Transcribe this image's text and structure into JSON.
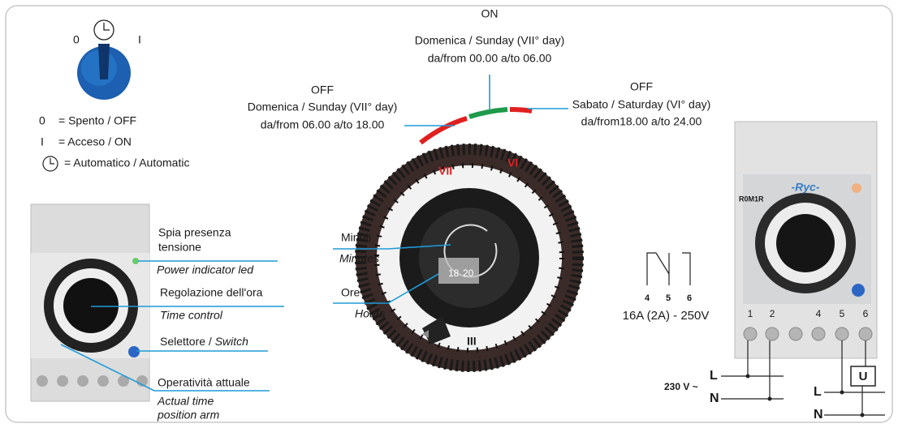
{
  "switch": {
    "off": "0",
    "on": "I"
  },
  "legend": [
    {
      "symbol": "0",
      "text": "= Spento / OFF"
    },
    {
      "symbol": "I",
      "text": "= Acceso  / ON"
    },
    {
      "text": "= Automatico / Automatic"
    }
  ],
  "callouts": {
    "on": {
      "state": "ON",
      "day": "Domenica / Sunday (VII° day)",
      "time": "da/from 00.00 a/to 06.00"
    },
    "off_sunday": {
      "state": "OFF",
      "day": "Domenica / Sunday (VII° day)",
      "time": "da/from 06.00 a/to 18.00"
    },
    "off_saturday": {
      "state": "OFF",
      "day": "Sabato / Saturday (VI° day)",
      "time": "da/from18.00 a/to 24.00"
    }
  },
  "device_labels": {
    "led": [
      "Spia presenza",
      "tensione",
      "Power indicator led"
    ],
    "time_control": [
      "Regolazione dell'ora",
      "Time control"
    ],
    "switch": [
      "Selettore / ",
      "Switch"
    ],
    "arm": [
      "Operatività attuale",
      "Actual time",
      "position arm"
    ]
  },
  "dial": {
    "minutes": [
      "Minuti",
      "Minutes"
    ],
    "hours": [
      "Ore",
      "Hours"
    ],
    "labels": [
      "VII",
      "VI",
      "III",
      "18",
      "20"
    ]
  },
  "relay": {
    "terminals": [
      "4",
      "5",
      "6"
    ],
    "rating": "16A (2A) - 250V"
  },
  "device": {
    "brand": "-Ryc-",
    "model": "R0M1R",
    "terminals": [
      "1",
      "2",
      "4",
      "5",
      "6"
    ]
  },
  "wiring": {
    "supply": "230 V ~",
    "line": "L",
    "neutral": "N",
    "load_line": "L",
    "load_neutral": "N",
    "load": "U"
  }
}
